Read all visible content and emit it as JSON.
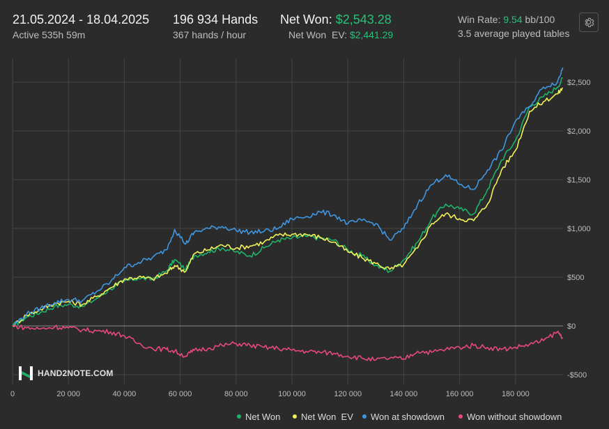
{
  "header": {
    "date_range": "21.05.2024 - 18.04.2025",
    "active": "Active 535h 59m",
    "hands_total": "196 934 Hands",
    "hands_per_hour": "367 hands / hour",
    "net_won_label": "Net Won: ",
    "net_won_value": "$2,543.28",
    "net_won_ev_label": "Net Won  EV: ",
    "net_won_ev_value": "$2,441.29",
    "win_rate_label": "Win Rate: ",
    "win_rate_value": "9.54",
    "win_rate_unit": " bb/100",
    "tables": "3.5 average played tables",
    "settings_icon": "gear-icon"
  },
  "logo": {
    "text": "HAND2NOTE.COM",
    "icon": "h2n-logo-icon"
  },
  "colors": {
    "background": "#2b2b2b",
    "grid": "#444444",
    "zero_line": "#8a8a8a",
    "net_won": "#1fb36a",
    "net_won_ev": "#f2f25a",
    "showdown": "#3f97e2",
    "non_showdown": "#e8497a",
    "accent_green": "#27c27a"
  },
  "chart_data": {
    "type": "line",
    "xlim": [
      0,
      197000
    ],
    "ylim": [
      -550,
      2750
    ],
    "x_ticks": [
      0,
      20000,
      40000,
      60000,
      80000,
      100000,
      120000,
      140000,
      160000,
      180000
    ],
    "x_tick_labels": [
      "0",
      "20 000",
      "40 000",
      "60 000",
      "80 000",
      "100 000",
      "120 000",
      "140 000",
      "160 000",
      "180 000"
    ],
    "y_ticks": [
      -500,
      0,
      500,
      1000,
      1500,
      2000,
      2500
    ],
    "y_tick_labels": [
      "-$500",
      "$0",
      "$500",
      "$1,000",
      "$1,500",
      "$2,000",
      "$2,500"
    ],
    "grid": true,
    "legend_position": "bottom-right",
    "series": [
      {
        "name": "Net Won",
        "color": "#1fb36a",
        "x": [
          0,
          5000,
          10000,
          15000,
          20000,
          25000,
          30000,
          35000,
          40000,
          45000,
          50000,
          55000,
          58000,
          62000,
          65000,
          70000,
          75000,
          80000,
          85000,
          90000,
          95000,
          100000,
          105000,
          110000,
          115000,
          120000,
          125000,
          130000,
          135000,
          140000,
          145000,
          150000,
          155000,
          160000,
          165000,
          170000,
          175000,
          180000,
          185000,
          190000,
          195000,
          196934
        ],
        "y": [
          0,
          90,
          140,
          200,
          220,
          200,
          280,
          380,
          460,
          490,
          480,
          560,
          680,
          580,
          720,
          760,
          800,
          760,
          720,
          800,
          880,
          900,
          920,
          900,
          880,
          780,
          720,
          620,
          560,
          680,
          860,
          1100,
          1250,
          1200,
          1150,
          1400,
          1700,
          1900,
          2250,
          2350,
          2450,
          2543
        ]
      },
      {
        "name": "Net Won  EV",
        "color": "#f2f25a",
        "x": [
          0,
          5000,
          10000,
          15000,
          20000,
          25000,
          30000,
          35000,
          40000,
          45000,
          50000,
          55000,
          58000,
          62000,
          65000,
          70000,
          75000,
          80000,
          85000,
          90000,
          95000,
          100000,
          105000,
          110000,
          115000,
          120000,
          125000,
          130000,
          135000,
          140000,
          145000,
          150000,
          155000,
          160000,
          165000,
          170000,
          175000,
          180000,
          185000,
          190000,
          195000,
          196934
        ],
        "y": [
          0,
          110,
          170,
          230,
          250,
          220,
          300,
          390,
          480,
          500,
          480,
          540,
          620,
          560,
          740,
          780,
          830,
          800,
          820,
          860,
          930,
          940,
          940,
          910,
          860,
          760,
          700,
          640,
          580,
          630,
          800,
          1050,
          1150,
          1100,
          1080,
          1250,
          1600,
          1800,
          2200,
          2300,
          2380,
          2441
        ]
      },
      {
        "name": "Won at showdown",
        "color": "#3f97e2",
        "x": [
          0,
          5000,
          10000,
          15000,
          20000,
          25000,
          30000,
          35000,
          40000,
          45000,
          50000,
          55000,
          58000,
          62000,
          65000,
          70000,
          75000,
          80000,
          85000,
          90000,
          95000,
          100000,
          105000,
          110000,
          115000,
          120000,
          125000,
          130000,
          135000,
          140000,
          145000,
          150000,
          155000,
          160000,
          165000,
          170000,
          175000,
          180000,
          185000,
          190000,
          195000,
          196934
        ],
        "y": [
          0,
          120,
          180,
          240,
          270,
          260,
          350,
          450,
          600,
          650,
          700,
          780,
          990,
          840,
          960,
          1000,
          1020,
          980,
          960,
          970,
          1000,
          1100,
          1120,
          1170,
          1140,
          1050,
          1080,
          1050,
          880,
          1000,
          1250,
          1450,
          1550,
          1450,
          1400,
          1600,
          1800,
          2100,
          2250,
          2450,
          2500,
          2650
        ]
      },
      {
        "name": "Won without showdown",
        "color": "#e8497a",
        "x": [
          0,
          5000,
          10000,
          15000,
          20000,
          25000,
          30000,
          35000,
          40000,
          45000,
          50000,
          55000,
          58000,
          62000,
          65000,
          70000,
          75000,
          80000,
          85000,
          90000,
          95000,
          100000,
          105000,
          110000,
          115000,
          120000,
          125000,
          130000,
          135000,
          140000,
          145000,
          150000,
          155000,
          160000,
          165000,
          170000,
          175000,
          180000,
          185000,
          190000,
          195000,
          196934
        ],
        "y": [
          0,
          -20,
          -30,
          -10,
          -20,
          -40,
          -50,
          -60,
          -100,
          -180,
          -230,
          -240,
          -260,
          -310,
          -250,
          -230,
          -200,
          -180,
          -200,
          -220,
          -230,
          -250,
          -260,
          -270,
          -280,
          -310,
          -330,
          -350,
          -330,
          -340,
          -260,
          -270,
          -240,
          -220,
          -200,
          -220,
          -240,
          -220,
          -190,
          -150,
          -60,
          -120
        ]
      }
    ]
  }
}
